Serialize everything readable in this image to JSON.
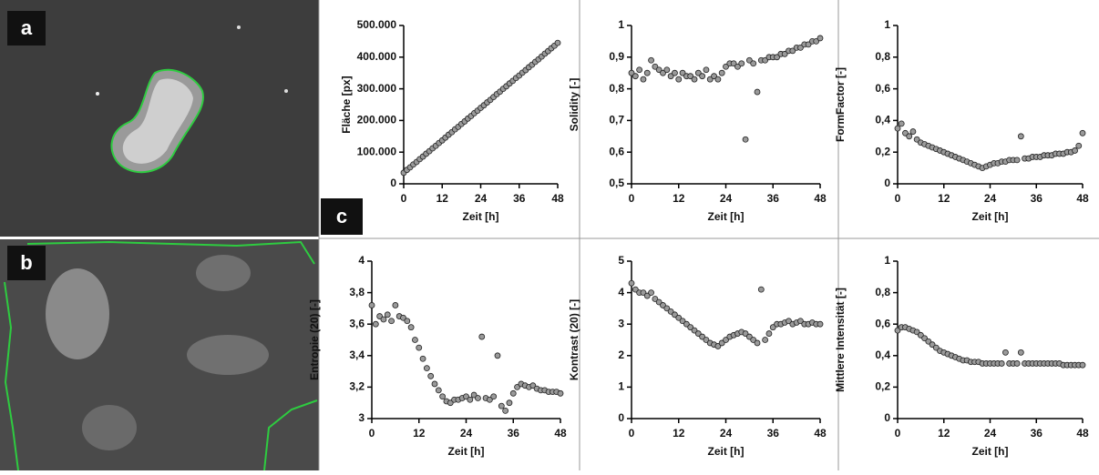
{
  "panel_labels": [
    "a",
    "b",
    "c"
  ],
  "chart_data": [
    {
      "type": "scatter",
      "ylabel": "Fläche [px]",
      "xlabel": "Zeit [h]",
      "x": [
        0,
        1,
        2,
        3,
        4,
        5,
        6,
        7,
        8,
        9,
        10,
        11,
        12,
        13,
        14,
        15,
        16,
        17,
        18,
        19,
        20,
        21,
        22,
        23,
        24,
        25,
        26,
        27,
        28,
        29,
        30,
        31,
        32,
        33,
        34,
        35,
        36,
        37,
        38,
        39,
        40,
        41,
        42,
        43,
        44,
        45,
        46,
        47,
        48
      ],
      "values": [
        35000,
        44000,
        52000,
        61000,
        69000,
        78000,
        86000,
        95000,
        103000,
        112000,
        120000,
        129000,
        137000,
        146000,
        155000,
        163000,
        172000,
        180000,
        189000,
        197000,
        206000,
        214000,
        223000,
        231000,
        240000,
        248000,
        257000,
        265000,
        274000,
        283000,
        291000,
        300000,
        308000,
        317000,
        325000,
        334000,
        342000,
        351000,
        359000,
        368000,
        376000,
        385000,
        393000,
        402000,
        411000,
        419000,
        428000,
        436000,
        445000
      ],
      "color": "#9a9a9a",
      "xlim": [
        0,
        48
      ],
      "xticks": [
        0,
        12,
        24,
        36,
        48
      ],
      "ylim": [
        0,
        500000
      ],
      "yticks": [
        0,
        {
          "value": 100000,
          "label": "100.000"
        },
        {
          "value": 200000,
          "label": "200.000"
        },
        {
          "value": 300000,
          "label": "300.000"
        },
        {
          "value": 400000,
          "label": "400.000"
        },
        {
          "value": 500000,
          "label": "500.000"
        }
      ]
    },
    {
      "type": "scatter",
      "ylabel": "Solidity [-]",
      "xlabel": "Zeit [h]",
      "x": [
        0,
        1,
        2,
        3,
        4,
        5,
        6,
        7,
        8,
        9,
        10,
        11,
        12,
        13,
        14,
        15,
        16,
        17,
        18,
        19,
        20,
        21,
        22,
        23,
        24,
        25,
        26,
        27,
        28,
        29,
        30,
        31,
        32,
        33,
        34,
        35,
        36,
        37,
        38,
        39,
        40,
        41,
        42,
        43,
        44,
        45,
        46,
        47,
        48
      ],
      "values": [
        0.85,
        0.84,
        0.86,
        0.83,
        0.85,
        0.89,
        0.87,
        0.86,
        0.85,
        0.86,
        0.84,
        0.85,
        0.83,
        0.85,
        0.84,
        0.84,
        0.83,
        0.85,
        0.84,
        0.86,
        0.83,
        0.84,
        0.83,
        0.85,
        0.87,
        0.88,
        0.88,
        0.87,
        0.88,
        0.64,
        0.89,
        0.88,
        0.79,
        0.89,
        0.89,
        0.9,
        0.9,
        0.9,
        0.91,
        0.91,
        0.92,
        0.92,
        0.93,
        0.93,
        0.94,
        0.94,
        0.95,
        0.95,
        0.96
      ],
      "color": "#9a9a9a",
      "xlim": [
        0,
        48
      ],
      "xticks": [
        0,
        12,
        24,
        36,
        48
      ],
      "ylim": [
        0.5,
        1
      ],
      "yticks": [
        {
          "value": 0.5,
          "label": "0,5"
        },
        {
          "value": 0.6,
          "label": "0,6"
        },
        {
          "value": 0.7,
          "label": "0,7"
        },
        {
          "value": 0.8,
          "label": "0,8"
        },
        {
          "value": 0.9,
          "label": "0,9"
        },
        1
      ]
    },
    {
      "type": "scatter",
      "ylabel": "FormFactor [-]",
      "xlabel": "Zeit [h]",
      "x": [
        0,
        1,
        2,
        3,
        4,
        5,
        6,
        7,
        8,
        9,
        10,
        11,
        12,
        13,
        14,
        15,
        16,
        17,
        18,
        19,
        20,
        21,
        22,
        23,
        24,
        25,
        26,
        27,
        28,
        29,
        30,
        31,
        32,
        33,
        34,
        35,
        36,
        37,
        38,
        39,
        40,
        41,
        42,
        43,
        44,
        45,
        46,
        47,
        48
      ],
      "values": [
        0.35,
        0.38,
        0.32,
        0.3,
        0.33,
        0.28,
        0.26,
        0.25,
        0.24,
        0.23,
        0.22,
        0.21,
        0.2,
        0.19,
        0.18,
        0.17,
        0.16,
        0.15,
        0.14,
        0.13,
        0.12,
        0.11,
        0.1,
        0.11,
        0.12,
        0.13,
        0.13,
        0.14,
        0.14,
        0.15,
        0.15,
        0.15,
        0.3,
        0.16,
        0.16,
        0.17,
        0.17,
        0.17,
        0.18,
        0.18,
        0.18,
        0.19,
        0.19,
        0.19,
        0.2,
        0.2,
        0.21,
        0.24,
        0.32
      ],
      "color": "#9a9a9a",
      "xlim": [
        0,
        48
      ],
      "xticks": [
        0,
        12,
        24,
        36,
        48
      ],
      "ylim": [
        0,
        1
      ],
      "yticks": [
        0,
        {
          "value": 0.2,
          "label": "0,2"
        },
        {
          "value": 0.4,
          "label": "0,4"
        },
        {
          "value": 0.6,
          "label": "0,6"
        },
        {
          "value": 0.8,
          "label": "0,8"
        },
        1
      ]
    },
    {
      "type": "scatter",
      "ylabel": "Entropie (20) [-]",
      "xlabel": "Zeit [h]",
      "x": [
        0,
        1,
        2,
        3,
        4,
        5,
        6,
        7,
        8,
        9,
        10,
        11,
        12,
        13,
        14,
        15,
        16,
        17,
        18,
        19,
        20,
        21,
        22,
        23,
        24,
        25,
        26,
        27,
        28,
        29,
        30,
        31,
        32,
        33,
        34,
        35,
        36,
        37,
        38,
        39,
        40,
        41,
        42,
        43,
        44,
        45,
        46,
        47,
        48
      ],
      "values": [
        3.72,
        3.6,
        3.65,
        3.63,
        3.66,
        3.62,
        3.72,
        3.65,
        3.64,
        3.62,
        3.58,
        3.5,
        3.45,
        3.38,
        3.32,
        3.27,
        3.22,
        3.18,
        3.14,
        3.11,
        3.1,
        3.12,
        3.12,
        3.13,
        3.14,
        3.12,
        3.15,
        3.13,
        3.52,
        3.13,
        3.12,
        3.14,
        3.4,
        3.08,
        3.05,
        3.1,
        3.16,
        3.2,
        3.22,
        3.21,
        3.2,
        3.21,
        3.19,
        3.18,
        3.18,
        3.17,
        3.17,
        3.17,
        3.16
      ],
      "color": "#9a9a9a",
      "xlim": [
        0,
        48
      ],
      "xticks": [
        0,
        12,
        24,
        36,
        48
      ],
      "ylim": [
        3,
        4
      ],
      "yticks": [
        3,
        {
          "value": 3.2,
          "label": "3,2"
        },
        {
          "value": 3.4,
          "label": "3,4"
        },
        {
          "value": 3.6,
          "label": "3,6"
        },
        {
          "value": 3.8,
          "label": "3,8"
        },
        4
      ]
    },
    {
      "type": "scatter",
      "ylabel": "Kontrast (20) [-]",
      "xlabel": "Zeit [h]",
      "x": [
        0,
        1,
        2,
        3,
        4,
        5,
        6,
        7,
        8,
        9,
        10,
        11,
        12,
        13,
        14,
        15,
        16,
        17,
        18,
        19,
        20,
        21,
        22,
        23,
        24,
        25,
        26,
        27,
        28,
        29,
        30,
        31,
        32,
        33,
        34,
        35,
        36,
        37,
        38,
        39,
        40,
        41,
        42,
        43,
        44,
        45,
        46,
        47,
        48
      ],
      "values": [
        4.3,
        4.1,
        4.0,
        4.0,
        3.9,
        4.0,
        3.8,
        3.7,
        3.6,
        3.5,
        3.4,
        3.3,
        3.2,
        3.1,
        3.0,
        2.9,
        2.8,
        2.7,
        2.6,
        2.5,
        2.4,
        2.35,
        2.3,
        2.4,
        2.5,
        2.6,
        2.65,
        2.7,
        2.75,
        2.7,
        2.6,
        2.5,
        2.4,
        4.1,
        2.5,
        2.7,
        2.9,
        3.0,
        3.0,
        3.05,
        3.1,
        3.0,
        3.05,
        3.1,
        3.0,
        3.0,
        3.05,
        3.0,
        3.0
      ],
      "color": "#9a9a9a",
      "xlim": [
        0,
        48
      ],
      "xticks": [
        0,
        12,
        24,
        36,
        48
      ],
      "ylim": [
        0,
        5
      ],
      "yticks": [
        0,
        1,
        2,
        3,
        4,
        5
      ]
    },
    {
      "type": "scatter",
      "ylabel": "Mittlere Intensität [-]",
      "xlabel": "Zeit [h]",
      "x": [
        0,
        1,
        2,
        3,
        4,
        5,
        6,
        7,
        8,
        9,
        10,
        11,
        12,
        13,
        14,
        15,
        16,
        17,
        18,
        19,
        20,
        21,
        22,
        23,
        24,
        25,
        26,
        27,
        28,
        29,
        30,
        31,
        32,
        33,
        34,
        35,
        36,
        37,
        38,
        39,
        40,
        41,
        42,
        43,
        44,
        45,
        46,
        47,
        48
      ],
      "values": [
        0.56,
        0.58,
        0.58,
        0.57,
        0.56,
        0.55,
        0.53,
        0.51,
        0.49,
        0.47,
        0.45,
        0.43,
        0.42,
        0.41,
        0.4,
        0.39,
        0.38,
        0.37,
        0.37,
        0.36,
        0.36,
        0.36,
        0.35,
        0.35,
        0.35,
        0.35,
        0.35,
        0.35,
        0.42,
        0.35,
        0.35,
        0.35,
        0.42,
        0.35,
        0.35,
        0.35,
        0.35,
        0.35,
        0.35,
        0.35,
        0.35,
        0.35,
        0.35,
        0.34,
        0.34,
        0.34,
        0.34,
        0.34,
        0.34
      ],
      "color": "#9a9a9a",
      "xlim": [
        0,
        48
      ],
      "xticks": [
        0,
        12,
        24,
        36,
        48
      ],
      "ylim": [
        0,
        1
      ],
      "yticks": [
        0,
        {
          "value": 0.2,
          "label": "0,2"
        },
        {
          "value": 0.4,
          "label": "0,4"
        },
        {
          "value": 0.6,
          "label": "0,6"
        },
        {
          "value": 0.8,
          "label": "0,8"
        },
        1
      ]
    }
  ]
}
